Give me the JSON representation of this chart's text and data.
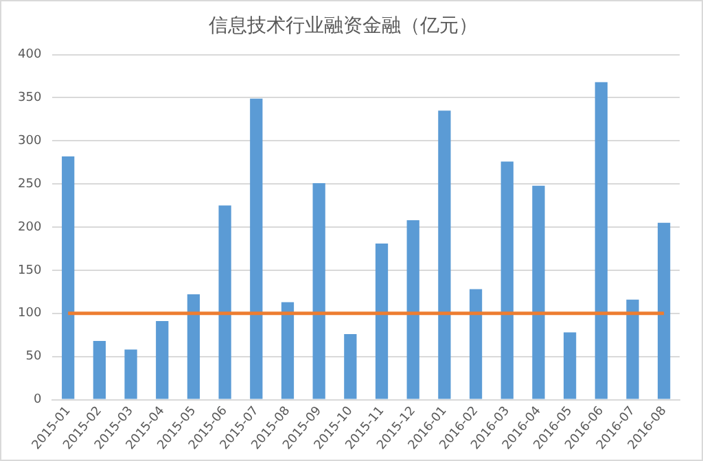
{
  "chart_data": {
    "type": "bar",
    "title": "信息技术行业融资金融（亿元）",
    "categories": [
      "2015-01",
      "2015-02",
      "2015-03",
      "2015-04",
      "2015-05",
      "2015-06",
      "2015-07",
      "2015-08",
      "2015-09",
      "2015-10",
      "2015-11",
      "2015-12",
      "2016-01",
      "2016-02",
      "2016-03",
      "2016-04",
      "2016-05",
      "2016-06",
      "2016-07",
      "2016-08"
    ],
    "values": [
      282,
      68,
      58,
      91,
      122,
      225,
      349,
      113,
      251,
      76,
      181,
      208,
      335,
      128,
      276,
      248,
      78,
      368,
      116,
      205
    ],
    "color": "#5b9bd5",
    "ylim": [
      0,
      400
    ],
    "yticks": [
      0,
      50,
      100,
      150,
      200,
      250,
      300,
      350,
      400
    ],
    "grid": "y",
    "legend": false,
    "ref_lines": [
      {
        "axis": "y",
        "value": 100,
        "color": "#ed7d31"
      }
    ]
  }
}
